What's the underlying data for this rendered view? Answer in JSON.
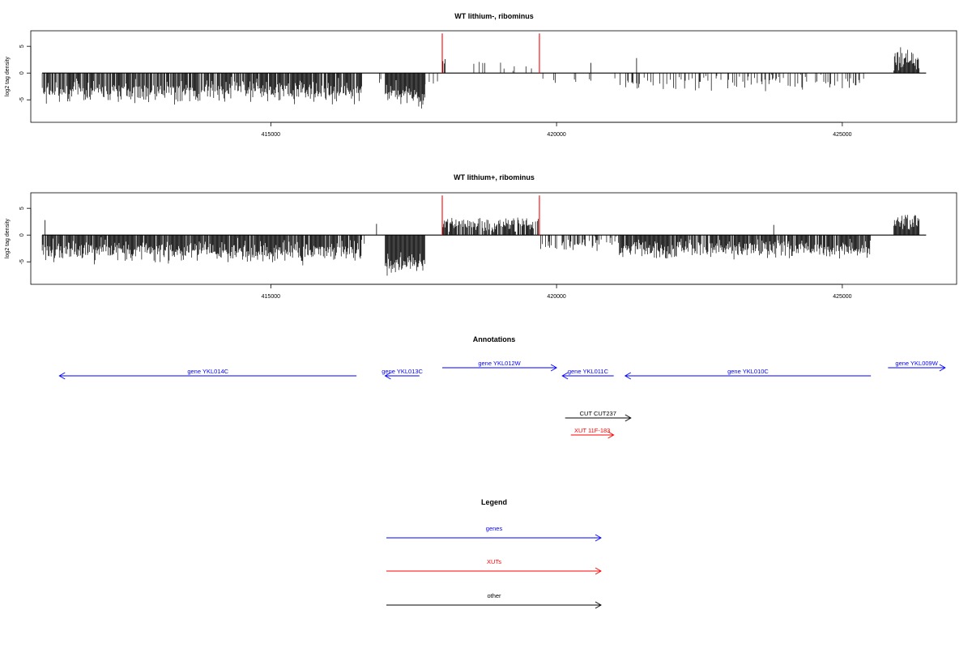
{
  "chart_data": [
    {
      "type": "bar",
      "title": "WT lithium-, ribominus",
      "ylabel": "log2 tag density",
      "xlim": [
        410800,
        427000
      ],
      "ylim": [
        -9.2,
        7.9
      ],
      "x_ticks": [
        415000,
        420000,
        425000
      ],
      "x_tick_labels": [
        "415000",
        "420000",
        "425000"
      ],
      "y_ticks": [
        -5,
        0,
        5
      ],
      "y_tick_labels": [
        "-5",
        "0",
        "5"
      ],
      "track_range": [
        411000,
        425900
      ],
      "segments": [
        {
          "from": 411000,
          "to": 416600,
          "sign": -1,
          "density": 0.85,
          "mean": 3.4,
          "spread": 1.6,
          "max": 6.6
        },
        {
          "from": 416600,
          "to": 417000,
          "sign": -1,
          "density": 0.04,
          "mean": 1.5,
          "spread": 0.5,
          "max": 2.5
        },
        {
          "from": 417000,
          "to": 417700,
          "sign": -1,
          "density": 1.0,
          "mean": 4.2,
          "spread": 1.6,
          "max": 6.8
        },
        {
          "from": 417700,
          "to": 418000,
          "sign": -1,
          "density": 0.15,
          "mean": 2.0,
          "spread": 0.6,
          "max": 3.0
        },
        {
          "from": 418000,
          "to": 419700,
          "sign": 1,
          "density": 0.09,
          "mean": 1.8,
          "spread": 1.2,
          "max": 4.4
        },
        {
          "from": 419700,
          "to": 421100,
          "sign": -1,
          "density": 0.07,
          "mean": 1.3,
          "spread": 0.8,
          "max": 3.0
        },
        {
          "from": 421100,
          "to": 425500,
          "sign": -1,
          "density": 0.25,
          "mean": 1.8,
          "spread": 1.2,
          "max": 5.4
        },
        {
          "from": 425900,
          "to": 426350,
          "sign": 1,
          "density": 1.0,
          "mean": 2.6,
          "spread": 1.6,
          "max": 7.3
        }
      ],
      "spikes": [
        {
          "x": 421400,
          "value": 2.8
        },
        {
          "x": 420600,
          "value": 1.9
        },
        {
          "x": 418050,
          "value": 2.6
        }
      ],
      "highlights": [
        {
          "x": 418000,
          "value": 7.4
        },
        {
          "x": 419700,
          "value": 7.4
        }
      ],
      "color": "#000000",
      "highlight_color": "#ff0000"
    },
    {
      "type": "bar",
      "title": "WT lithium+, ribominus",
      "ylabel": "log2 tag density",
      "xlim": [
        410800,
        427000
      ],
      "ylim": [
        -9.2,
        7.9
      ],
      "x_ticks": [
        415000,
        420000,
        425000
      ],
      "x_tick_labels": [
        "415000",
        "420000",
        "425000"
      ],
      "y_ticks": [
        -5,
        0,
        5
      ],
      "y_tick_labels": [
        "-5",
        "0",
        "5"
      ],
      "track_range": [
        411000,
        425900
      ],
      "segments": [
        {
          "from": 411000,
          "to": 416600,
          "sign": -1,
          "density": 0.95,
          "mean": 3.0,
          "spread": 1.5,
          "max": 6.4
        },
        {
          "from": 416600,
          "to": 417000,
          "sign": -1,
          "density": 0.05,
          "mean": 1.5,
          "spread": 0.5,
          "max": 2.5
        },
        {
          "from": 417000,
          "to": 417700,
          "sign": -1,
          "density": 1.0,
          "mean": 5.2,
          "spread": 1.7,
          "max": 8.8
        },
        {
          "from": 417700,
          "to": 418000,
          "sign": 1,
          "density": 0.05,
          "mean": 1.0,
          "spread": 0.4,
          "max": 2.0
        },
        {
          "from": 418000,
          "to": 419700,
          "sign": 1,
          "density": 0.8,
          "mean": 2.0,
          "spread": 0.9,
          "max": 3.6
        },
        {
          "from": 419700,
          "to": 421100,
          "sign": -1,
          "density": 0.5,
          "mean": 1.7,
          "spread": 1.1,
          "max": 5.0
        },
        {
          "from": 421100,
          "to": 425500,
          "sign": -1,
          "density": 0.9,
          "mean": 2.6,
          "spread": 1.3,
          "max": 6.1
        },
        {
          "from": 425900,
          "to": 426350,
          "sign": 1,
          "density": 1.0,
          "mean": 2.4,
          "spread": 1.4,
          "max": 6.6
        }
      ],
      "spikes": [
        {
          "x": 411050,
          "value": 2.8
        },
        {
          "x": 416850,
          "value": 2.1
        },
        {
          "x": 423800,
          "value": 1.9
        }
      ],
      "highlights": [
        {
          "x": 418000,
          "value": 7.4
        },
        {
          "x": 419700,
          "value": 7.4
        }
      ],
      "color": "#000000",
      "highlight_color": "#ff0000"
    }
  ],
  "annotations": {
    "title": "Annotations",
    "xlim": [
      410800,
      427000
    ],
    "features": [
      {
        "label": "gene YKL014C",
        "start": 416500,
        "end": 411300,
        "row": 0,
        "kind": "genes"
      },
      {
        "label": "gene YKL013C",
        "start": 417600,
        "end": 417000,
        "row": 0,
        "kind": "genes"
      },
      {
        "label": "gene YKL012W",
        "start": 418000,
        "end": 420000,
        "row": -1,
        "kind": "genes"
      },
      {
        "label": "gene YKL011C",
        "start": 421000,
        "end": 420100,
        "row": 0,
        "kind": "genes"
      },
      {
        "label": "gene YKL010C",
        "start": 425500,
        "end": 421200,
        "row": 0,
        "kind": "genes"
      },
      {
        "label": "gene YKL009W",
        "start": 425800,
        "end": 426800,
        "row": -1,
        "kind": "genes"
      },
      {
        "label": "CUT CUT237",
        "start": 420150,
        "end": 421300,
        "row": 3,
        "kind": "other"
      },
      {
        "label": "XUT 11F-183",
        "start": 420250,
        "end": 421000,
        "row": 4,
        "kind": "XUTs"
      }
    ]
  },
  "legend": {
    "title": "Legend",
    "entries": [
      {
        "label": "genes",
        "kind": "genes"
      },
      {
        "label": "XUTs",
        "kind": "XUTs"
      },
      {
        "label": "other",
        "kind": "other"
      }
    ]
  },
  "colors": {
    "genes": "#0000ff",
    "XUTs": "#ff0000",
    "other": "#000000"
  }
}
